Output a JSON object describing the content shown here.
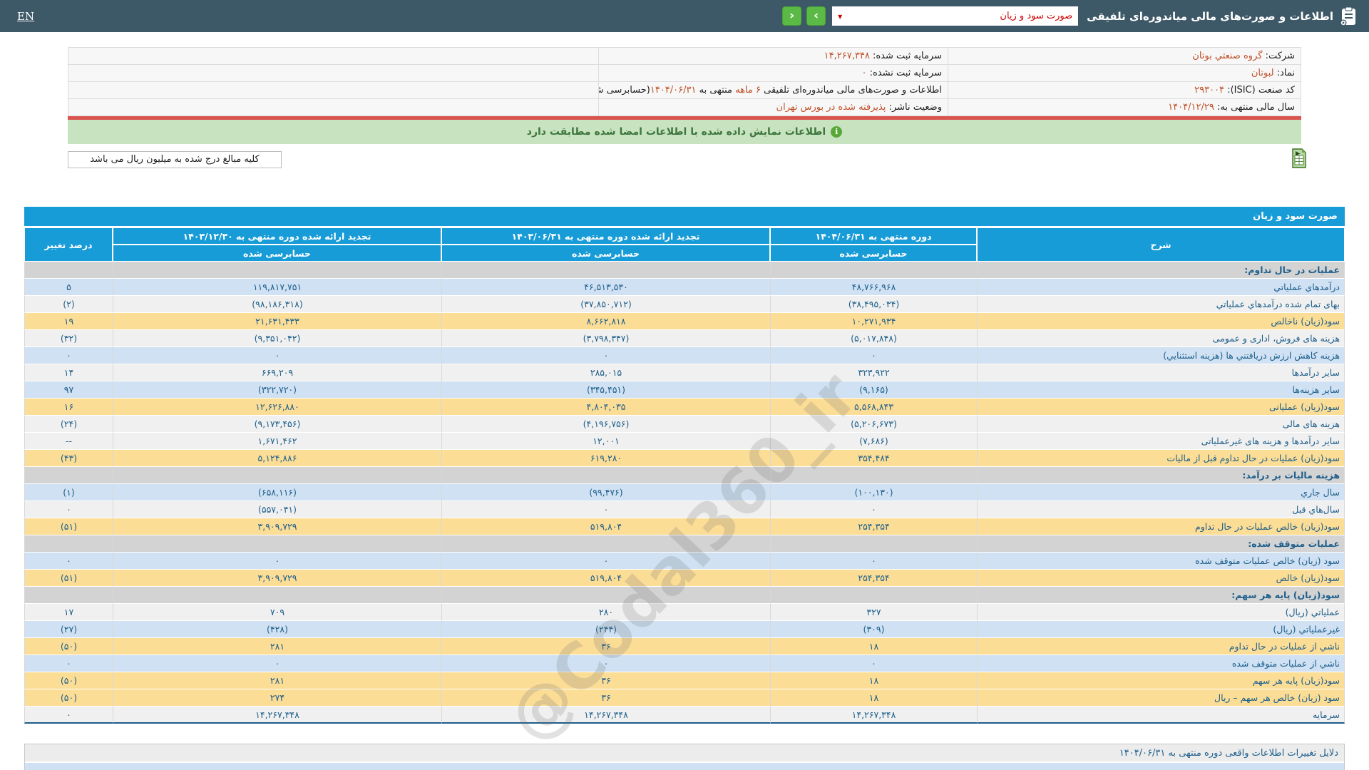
{
  "topbar": {
    "title": "اطلاعات و صورت‌های مالی میاندوره‌ای تلفیقی",
    "select_value": "صورت سود و زیان",
    "select_caret": "▾",
    "prev_glyph": "‹",
    "next_glyph": "›",
    "language": "EN"
  },
  "company_info": {
    "company_label": "شرکت:",
    "company_value": "گروه صنعتي بوتان",
    "symbol_label": "نماد:",
    "symbol_value": "لبوتان",
    "isic_label": "کد صنعت (ISIC):",
    "isic_value": "۲۹۳۰۰۴",
    "fiscal_label": "سال مالی منتهی به:",
    "fiscal_value": "۱۴۰۴/۱۲/۲۹",
    "reg_capital_label": "سرمایه ثبت شده:",
    "reg_capital_value": "۱۴,۲۶۷,۳۴۸",
    "unreg_capital_label": "سرمایه ثبت نشده:",
    "unreg_capital_value": "۰",
    "report_p1": "اطلاعات و صورت‌های مالی میاندوره‌ای تلفیقی ",
    "report_months": "۶ ماهه",
    "report_p2": " منتهی به ",
    "report_date": "۱۴۰۴/۰۶/۳۱",
    "report_p3": "(حسابرسی شده)",
    "status_label": "وضعیت ناشر:",
    "status_value": "پذیرفته شده در بورس تهران"
  },
  "banner": {
    "icon": "i",
    "text": "اطلاعات نمایش داده شده با اطلاعات امضا شده مطابقت دارد"
  },
  "note": {
    "text": "کلیه مبالغ درج شده به میلیون ریال می باشد"
  },
  "watermark": {
    "text": "@Codal360_ir"
  },
  "statement": {
    "title": "صورت سود و زیان",
    "columns": {
      "desc": "شرح",
      "current": "دوره منتهی به ۱۴۰۴/۰۶/۳۱",
      "previous": "تجدید ارائه شده دوره منتهی به ۱۴۰۳/۰۶/۳۱",
      "year": "تجدید ارائه شده دوره منتهی به ۱۴۰۳/۱۲/۳۰",
      "change": "درصد تغییر",
      "audited": "حسابرسی شده"
    },
    "rows": [
      {
        "type": "section",
        "style": "section",
        "label": "عملیات در حال تداوم:"
      },
      {
        "type": "data",
        "style": "blue",
        "label": "درآمدهاي عملياتي",
        "current": "۴۸,۷۶۶,۹۶۸",
        "previous": "۴۶,۵۱۳,۵۳۰",
        "year": "۱۱۹,۸۱۷,۷۵۱",
        "change": "۵"
      },
      {
        "type": "data",
        "style": "light",
        "label": "بهای تمام شده درآمدهاي عملياتي",
        "current": "(۳۸,۴۹۵,۰۳۴)",
        "previous": "(۳۷,۸۵۰,۷۱۲)",
        "year": "(۹۸,۱۸۶,۳۱۸)",
        "change": "(۲)"
      },
      {
        "type": "data",
        "style": "yellow",
        "label": "سود(زیان) ناخالص",
        "current": "۱۰,۲۷۱,۹۳۴",
        "previous": "۸,۶۶۲,۸۱۸",
        "year": "۲۱,۶۳۱,۴۳۳",
        "change": "۱۹"
      },
      {
        "type": "data",
        "style": "light",
        "label": "هزینه های فروش، اداری و عمومی",
        "current": "(۵,۰۱۷,۸۴۸)",
        "previous": "(۳,۷۹۸,۳۴۷)",
        "year": "(۹,۳۵۱,۰۴۲)",
        "change": "(۳۲)"
      },
      {
        "type": "data",
        "style": "blue",
        "label": "هزینه کاهش ارزش دریافتني ها (هزینه استثنایي)",
        "current": "۰",
        "previous": "۰",
        "year": "۰",
        "change": "۰"
      },
      {
        "type": "data",
        "style": "light",
        "label": "سایر درآمدها",
        "current": "۳۲۳,۹۲۲",
        "previous": "۲۸۵,۰۱۵",
        "year": "۶۶۹,۲۰۹",
        "change": "۱۴"
      },
      {
        "type": "data",
        "style": "blue",
        "label": "سایر هزینه‌ها",
        "current": "(۹,۱۶۵)",
        "previous": "(۳۴۵,۴۵۱)",
        "year": "(۳۲۲,۷۲۰)",
        "change": "۹۷"
      },
      {
        "type": "data",
        "style": "yellow",
        "label": "سود(زیان) عملیاتی",
        "current": "۵,۵۶۸,۸۴۳",
        "previous": "۴,۸۰۴,۰۳۵",
        "year": "۱۲,۶۲۶,۸۸۰",
        "change": "۱۶"
      },
      {
        "type": "data",
        "style": "light",
        "label": "هزینه های مالی",
        "current": "(۵,۲۰۶,۶۷۳)",
        "previous": "(۴,۱۹۶,۷۵۶)",
        "year": "(۹,۱۷۳,۴۵۶)",
        "change": "(۲۴)"
      },
      {
        "type": "data",
        "style": "light",
        "label": "سایر درآمدها و هزینه های غیرعملیاتی",
        "current": "(۷,۶۸۶)",
        "previous": "۱۲,۰۰۱",
        "year": "۱,۶۷۱,۴۶۲",
        "change": "--"
      },
      {
        "type": "data",
        "style": "yellow",
        "label": "سود(زیان) عملیات در حال تداوم قبل از مالیات",
        "current": "۳۵۴,۴۸۴",
        "previous": "۶۱۹,۲۸۰",
        "year": "۵,۱۲۴,۸۸۶",
        "change": "(۴۳)"
      },
      {
        "type": "section",
        "style": "section",
        "label": "هزینه مالیات بر درآمد:"
      },
      {
        "type": "data",
        "style": "blue",
        "label": "سال جاري",
        "current": "(۱۰۰,۱۳۰)",
        "previous": "(۹۹,۴۷۶)",
        "year": "(۶۵۸,۱۱۶)",
        "change": "(۱)"
      },
      {
        "type": "data",
        "style": "light",
        "label": "سال‌هاي قبل",
        "current": "۰",
        "previous": "۰",
        "year": "(۵۵۷,۰۴۱)",
        "change": "۰"
      },
      {
        "type": "data",
        "style": "yellow",
        "label": "سود(زیان) خالص عملیات در حال تداوم",
        "current": "۲۵۴,۳۵۴",
        "previous": "۵۱۹,۸۰۴",
        "year": "۳,۹۰۹,۷۲۹",
        "change": "(۵۱)"
      },
      {
        "type": "section",
        "style": "section",
        "label": "عملیات متوقف شده:"
      },
      {
        "type": "data",
        "style": "blue",
        "label": "سود (زیان) خالص عملیات متوقف شده",
        "current": "۰",
        "previous": "۰",
        "year": "۰",
        "change": "۰"
      },
      {
        "type": "data",
        "style": "yellow",
        "label": "سود(زیان) خالص",
        "current": "۲۵۴,۳۵۴",
        "previous": "۵۱۹,۸۰۴",
        "year": "۳,۹۰۹,۷۲۹",
        "change": "(۵۱)"
      },
      {
        "type": "section",
        "style": "section",
        "label": "سود(زیان) پایه هر سهم:"
      },
      {
        "type": "data",
        "style": "light",
        "label": "عملياتي (ريال)",
        "current": "۳۲۷",
        "previous": "۲۸۰",
        "year": "۷۰۹",
        "change": "۱۷"
      },
      {
        "type": "data",
        "style": "blue",
        "label": "غیرعملیاتي (ريال)",
        "current": "(۳۰۹)",
        "previous": "(۲۴۴)",
        "year": "(۴۲۸)",
        "change": "(۲۷)"
      },
      {
        "type": "data",
        "style": "yellow",
        "label": "ناشي از عملیات در حال تداوم",
        "current": "۱۸",
        "previous": "۳۶",
        "year": "۲۸۱",
        "change": "(۵۰)"
      },
      {
        "type": "data",
        "style": "blue",
        "label": "ناشي از عملیات متوقف شده",
        "current": "۰",
        "previous": "۰",
        "year": "۰",
        "change": "۰"
      },
      {
        "type": "data",
        "style": "yellow",
        "label": "سود(زیان) پایه هر سهم",
        "current": "۱۸",
        "previous": "۳۶",
        "year": "۲۸۱",
        "change": "(۵۰)"
      },
      {
        "type": "data",
        "style": "yellow",
        "label": "سود (زیان) خالص هر سهم – ریال",
        "current": "۱۸",
        "previous": "۳۶",
        "year": "۲۷۴",
        "change": "(۵۰)"
      },
      {
        "type": "data",
        "style": "light",
        "label": "سرمایه",
        "current": "۱۴,۲۶۷,۳۴۸",
        "previous": "۱۴,۲۶۷,۳۴۸",
        "year": "۱۴,۲۶۷,۳۴۸",
        "change": "۰"
      }
    ]
  },
  "footer": {
    "title": "دلایل تغییرات اطلاعات واقعی دوره منتهی به ۱۴۰۴/۰۶/۳۱"
  }
}
